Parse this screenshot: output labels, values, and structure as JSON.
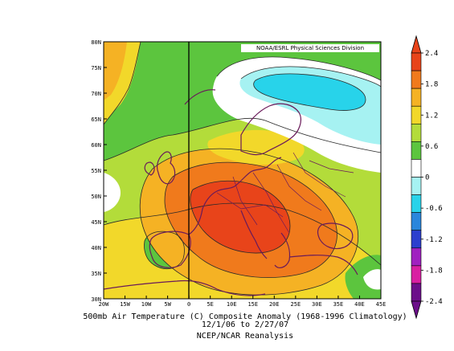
{
  "credit": "NOAA/ESRL Physical Sciences Division",
  "captions": {
    "line1": "500mb Air Temperature (C) Composite Anomaly (1968-1996 Climatology)",
    "line2": "12/1/06 to 2/27/07",
    "line3": "NCEP/NCAR Reanalysis"
  },
  "lat_labels": [
    "80N",
    "75N",
    "70N",
    "65N",
    "60N",
    "55N",
    "50N",
    "45N",
    "40N",
    "35N",
    "30N"
  ],
  "lon_labels": [
    "20W",
    "15W",
    "10W",
    "5W",
    "0",
    "5E",
    "10E",
    "15E",
    "20E",
    "25E",
    "30E",
    "35E",
    "40E",
    "45E"
  ],
  "colorbar": {
    "labels": [
      "2.4",
      "1.8",
      "1.2",
      "0.6",
      "0",
      "-0.6",
      "-1.2",
      "-1.8",
      "-2.4"
    ],
    "colors": [
      "#e8441a",
      "#f07a1c",
      "#f5b224",
      "#f2d82a",
      "#b3dc3a",
      "#5cc53e",
      "#ffffff",
      "#a6f2f2",
      "#28d3ea",
      "#2a86dc",
      "#2c3fce",
      "#a020c0",
      "#d91fa2",
      "#6c0f8a"
    ]
  },
  "map": {
    "lat_range": [
      30,
      80
    ],
    "lon_range": [
      -20,
      45
    ],
    "colors": {
      "warm_max": "#e8441a",
      "warm_high": "#f07a1c",
      "warm_mid": "#f5b224",
      "warm_low": "#f2d82a",
      "mild": "#b3dc3a",
      "green": "#5cc53e",
      "neutral": "#ffffff",
      "cool_low": "#a6f2f2",
      "cool_mid": "#28d3ea",
      "coast": "#6a1a5a",
      "contour": "#2a2a2a"
    }
  }
}
